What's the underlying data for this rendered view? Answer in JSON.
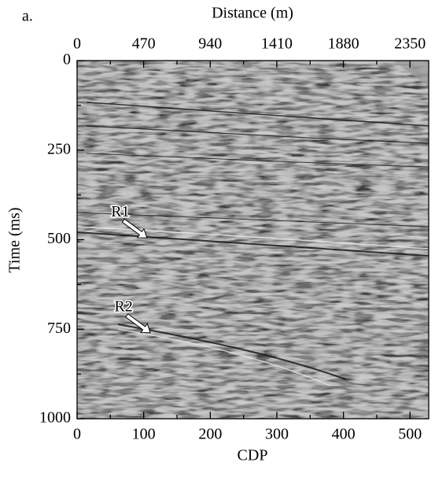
{
  "chart_data": {
    "type": "seismic",
    "panel_label": "a.",
    "x2label": "Distance (m)",
    "xlabel": "CDP",
    "ylabel": "Time (ms)",
    "xlim": [
      0,
      528
    ],
    "xticks": [
      0,
      100,
      200,
      300,
      400,
      500
    ],
    "xminorticks": [
      50,
      150,
      250,
      350,
      450
    ],
    "x2lim": [
      0,
      2482
    ],
    "x2ticks": [
      0,
      470,
      940,
      1410,
      1880,
      2350
    ],
    "x2minorticks": [
      235,
      705,
      1175,
      1645,
      2115
    ],
    "ylim": [
      0,
      1000
    ],
    "yticks": [
      0,
      250,
      500,
      750,
      1000
    ],
    "yminorticks": [
      125,
      375,
      625,
      875
    ],
    "y_inverted": true,
    "annotations": [
      {
        "text": "R1",
        "x": 105,
        "y": 495
      },
      {
        "text": "R2",
        "x": 110,
        "y": 760
      }
    ]
  }
}
